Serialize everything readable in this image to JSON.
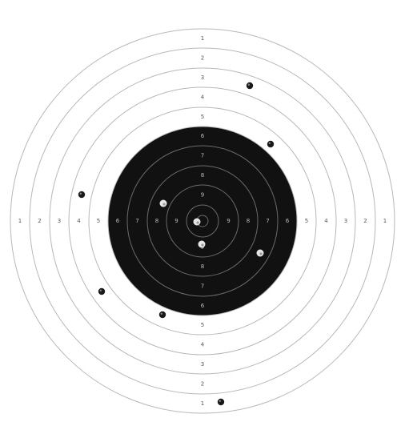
{
  "colors": {
    "background": "#ffffff",
    "ring_line_outer": "#b8b8b8",
    "ring_line_inner": "#6a6a6a",
    "black_zone": "#111111",
    "label_outer": "#555555",
    "label_inner": "#bdbdbd",
    "hole_dark": "#1a1a1a",
    "hole_light": "#e6e6e6"
  },
  "target": {
    "rings": [
      {
        "score": "1",
        "label": "1",
        "zone": "white"
      },
      {
        "score": "2",
        "label": "2",
        "zone": "white"
      },
      {
        "score": "3",
        "label": "3",
        "zone": "white"
      },
      {
        "score": "4",
        "label": "4",
        "zone": "white"
      },
      {
        "score": "5",
        "label": "5",
        "zone": "white"
      },
      {
        "score": "6",
        "label": "6",
        "zone": "black"
      },
      {
        "score": "7",
        "label": "7",
        "zone": "black"
      },
      {
        "score": "8",
        "label": "8",
        "zone": "black"
      },
      {
        "score": "9",
        "label": "9",
        "zone": "black"
      },
      {
        "score": "10",
        "label": "",
        "zone": "black"
      }
    ],
    "shots": [
      {
        "type": "dark"
      },
      {
        "type": "dark"
      },
      {
        "type": "dark"
      },
      {
        "type": "light"
      },
      {
        "type": "light"
      },
      {
        "type": "light"
      },
      {
        "type": "light"
      },
      {
        "type": "dark"
      },
      {
        "type": "dark"
      },
      {
        "type": "dark"
      }
    ]
  }
}
